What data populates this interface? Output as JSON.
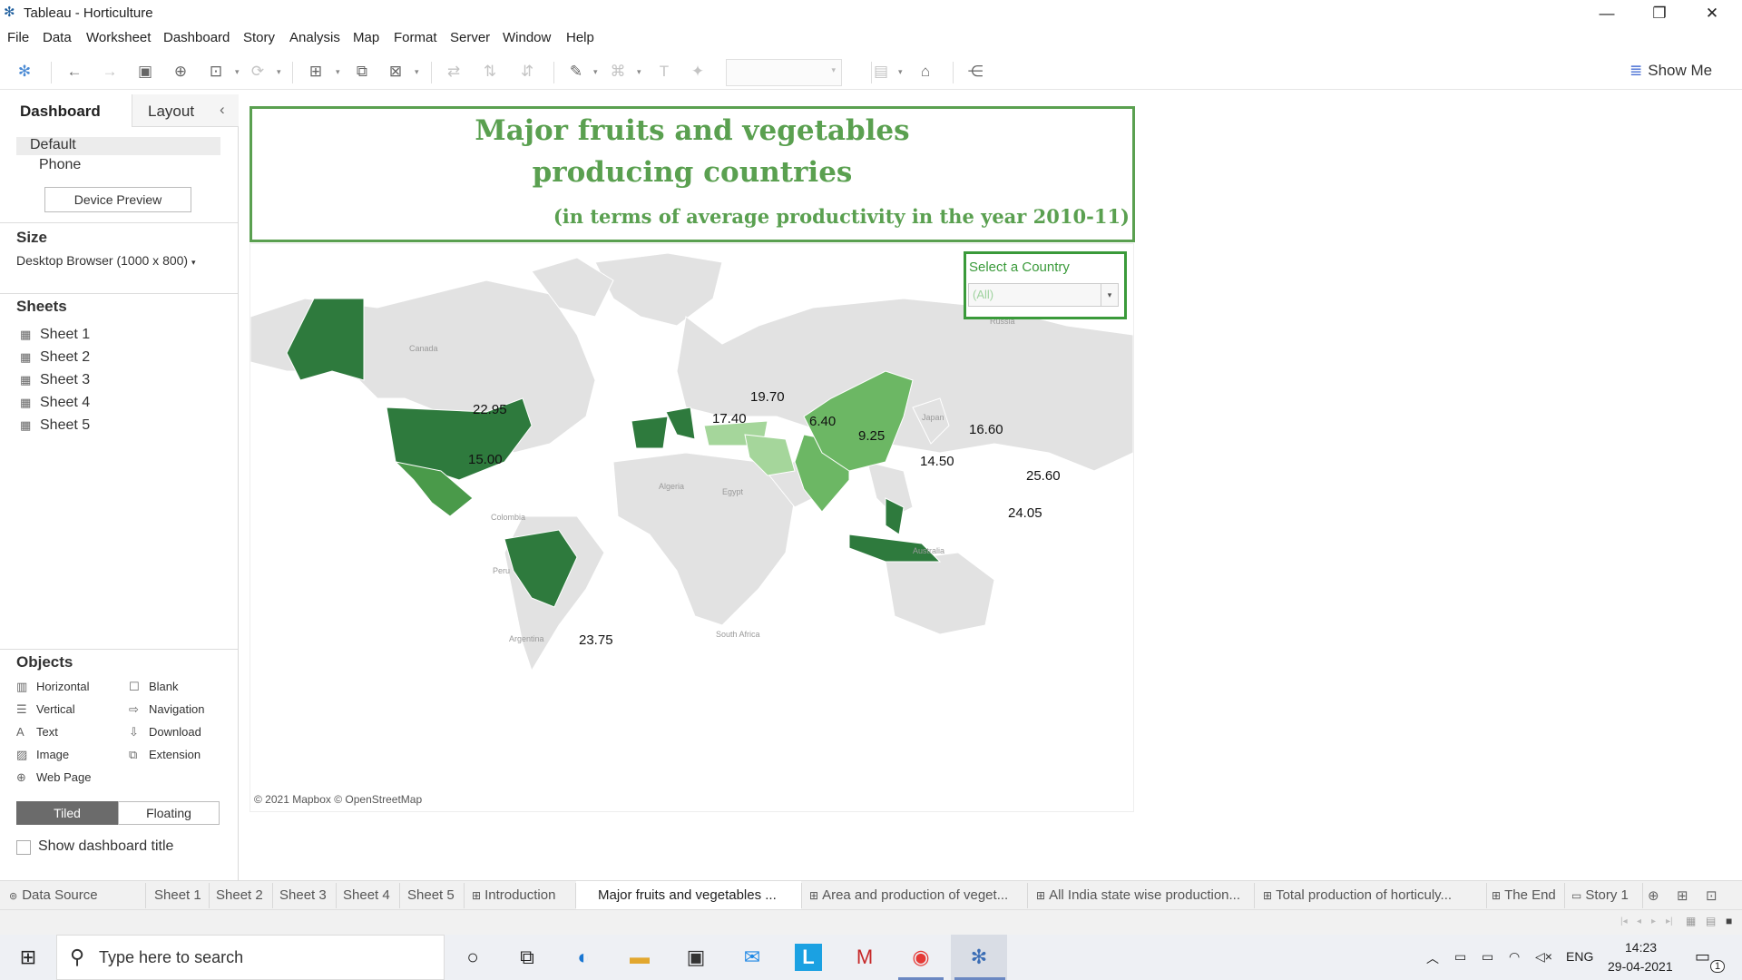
{
  "window": {
    "title": "Tableau - Horticulture",
    "minimize": "—",
    "restore": "❐",
    "close": "✕"
  },
  "menu": [
    "File",
    "Data",
    "Worksheet",
    "Dashboard",
    "Story",
    "Analysis",
    "Map",
    "Format",
    "Server",
    "Window",
    "Help"
  ],
  "toolbar": {
    "show_me": "Show Me"
  },
  "left_panel": {
    "tabs": {
      "dashboard": "Dashboard",
      "layout": "Layout",
      "collapse": "‹"
    },
    "device": {
      "default": "Default",
      "phone": "Phone",
      "preview_button": "Device Preview"
    },
    "size": {
      "heading": "Size",
      "value": "Desktop Browser (1000 x 800)"
    },
    "sheets": {
      "heading": "Sheets",
      "items": [
        "Sheet 1",
        "Sheet 2",
        "Sheet 3",
        "Sheet 4",
        "Sheet 5"
      ]
    },
    "objects": {
      "heading": "Objects",
      "left": [
        "Horizontal",
        "Vertical",
        "Text",
        "Image",
        "Web Page"
      ],
      "right": [
        "Blank",
        "Navigation",
        "Download",
        "Extension"
      ]
    },
    "mode": {
      "tiled": "Tiled",
      "floating": "Floating"
    },
    "show_title": "Show dashboard title"
  },
  "dashboard": {
    "title_line1": "Major fruits and vegetables",
    "title_line2": "producing countries",
    "subtitle": "(in terms of average productivity in the year 2010-11)",
    "filter": {
      "label": "Select a Country",
      "value": "(All)"
    },
    "map": {
      "credit": "© 2021 Mapbox © OpenStreetMap",
      "place_labels": {
        "canada": "Canada",
        "russia": "Russia",
        "algeria": "Algeria",
        "egypt": "Egypt",
        "colombia": "Colombia",
        "peru": "Peru",
        "argentina": "Argentina",
        "south_africa": "South Africa",
        "australia": "Australia",
        "japan": "Japan"
      },
      "values": {
        "usa": "22.95",
        "mexico": "15.00",
        "brazil": "23.75",
        "spain": "17.40",
        "italy": "19.70",
        "turkey": "6.40",
        "iran": "9.25",
        "india": "14.50",
        "china": "16.60",
        "vietnam": "25.60",
        "indonesia": "24.05"
      },
      "colors": {
        "dark": "#2e7a3d",
        "mid": "#4a9a4a",
        "light": "#6cb764",
        "pale": "#a5d69b",
        "land": "#e2e2e2",
        "water": "#ffffff"
      }
    }
  },
  "sheet_tabs": [
    "Data Source",
    "Sheet 1",
    "Sheet 2",
    "Sheet 3",
    "Sheet 4",
    "Sheet 5",
    "Introduction",
    "Major fruits and vegetables ...",
    "Area and production of veget...",
    "All India state wise production...",
    "Total production of horticuly...",
    "The End",
    "Story 1"
  ],
  "taskbar": {
    "search_placeholder": "Type here to search",
    "lang": "ENG",
    "time": "14:23",
    "date": "29-04-2021",
    "notifications": "1"
  }
}
